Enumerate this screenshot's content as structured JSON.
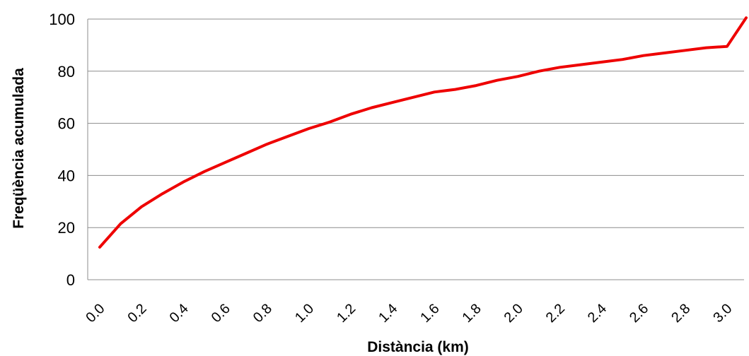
{
  "chart_data": {
    "type": "line",
    "title": "",
    "xlabel": "Distància (km)",
    "ylabel": "Freqüència acumulada",
    "ylim": [
      0,
      100
    ],
    "yticks": [
      "0",
      "20",
      "40",
      "60",
      "80",
      "100"
    ],
    "xticks": [
      "0.0",
      "0.2",
      "0.4",
      "0.6",
      "0.8",
      "1.0",
      "1.2",
      "1.4",
      "1.6",
      "1.8",
      "2.0",
      "2.2",
      "2.4",
      "2.6",
      "2.8",
      "3.0"
    ],
    "grid": "horizontal",
    "legend": "none",
    "series": [
      {
        "color": "#ee0000",
        "x": [
          0.0,
          0.1,
          0.2,
          0.3,
          0.4,
          0.5,
          0.6,
          0.7,
          0.8,
          0.9,
          1.0,
          1.1,
          1.2,
          1.3,
          1.4,
          1.5,
          1.6,
          1.7,
          1.8,
          1.9,
          2.0,
          2.1,
          2.2,
          2.3,
          2.4,
          2.5,
          2.6,
          2.7,
          2.8,
          2.9,
          3.0,
          3.1
        ],
        "y": [
          12.5,
          21.5,
          28,
          33,
          37.5,
          41.5,
          45,
          48.5,
          52,
          55,
          58,
          60.5,
          63.5,
          66,
          68,
          70,
          72,
          73,
          74.5,
          76.5,
          78,
          80,
          81.5,
          82.5,
          83.5,
          84.5,
          86,
          87,
          88,
          89,
          89.5,
          100.5
        ]
      }
    ]
  }
}
